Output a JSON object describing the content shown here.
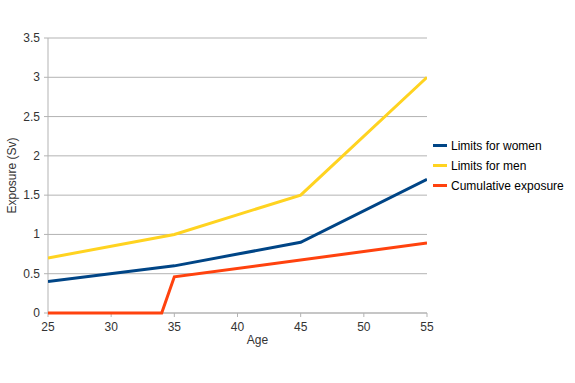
{
  "chart_data": {
    "type": "line",
    "x_label": "Age",
    "y_label": "Exposure (Sv)",
    "xlim": [
      25,
      55
    ],
    "xticks": [
      25,
      30,
      35,
      40,
      45,
      50,
      55
    ],
    "ylim": [
      0,
      3.5
    ],
    "yticks": [
      0,
      0.5,
      1,
      1.5,
      2,
      2.5,
      3,
      3.5
    ],
    "grid": true,
    "legend": "right",
    "series": [
      {
        "name": "Limits for women",
        "color": "#004586",
        "x": [
          25,
          35,
          45,
          55
        ],
        "values": [
          0.4,
          0.6,
          0.9,
          1.7
        ]
      },
      {
        "name": "Limits for men",
        "color": "#ffd320",
        "x": [
          25,
          35,
          45,
          55
        ],
        "values": [
          0.7,
          1.0,
          1.5,
          3.0
        ]
      },
      {
        "name": "Cumulative exposure",
        "color": "#ff420e",
        "x": [
          25,
          34,
          35,
          55
        ],
        "values": [
          0,
          0,
          0.46,
          0.89
        ]
      }
    ]
  }
}
